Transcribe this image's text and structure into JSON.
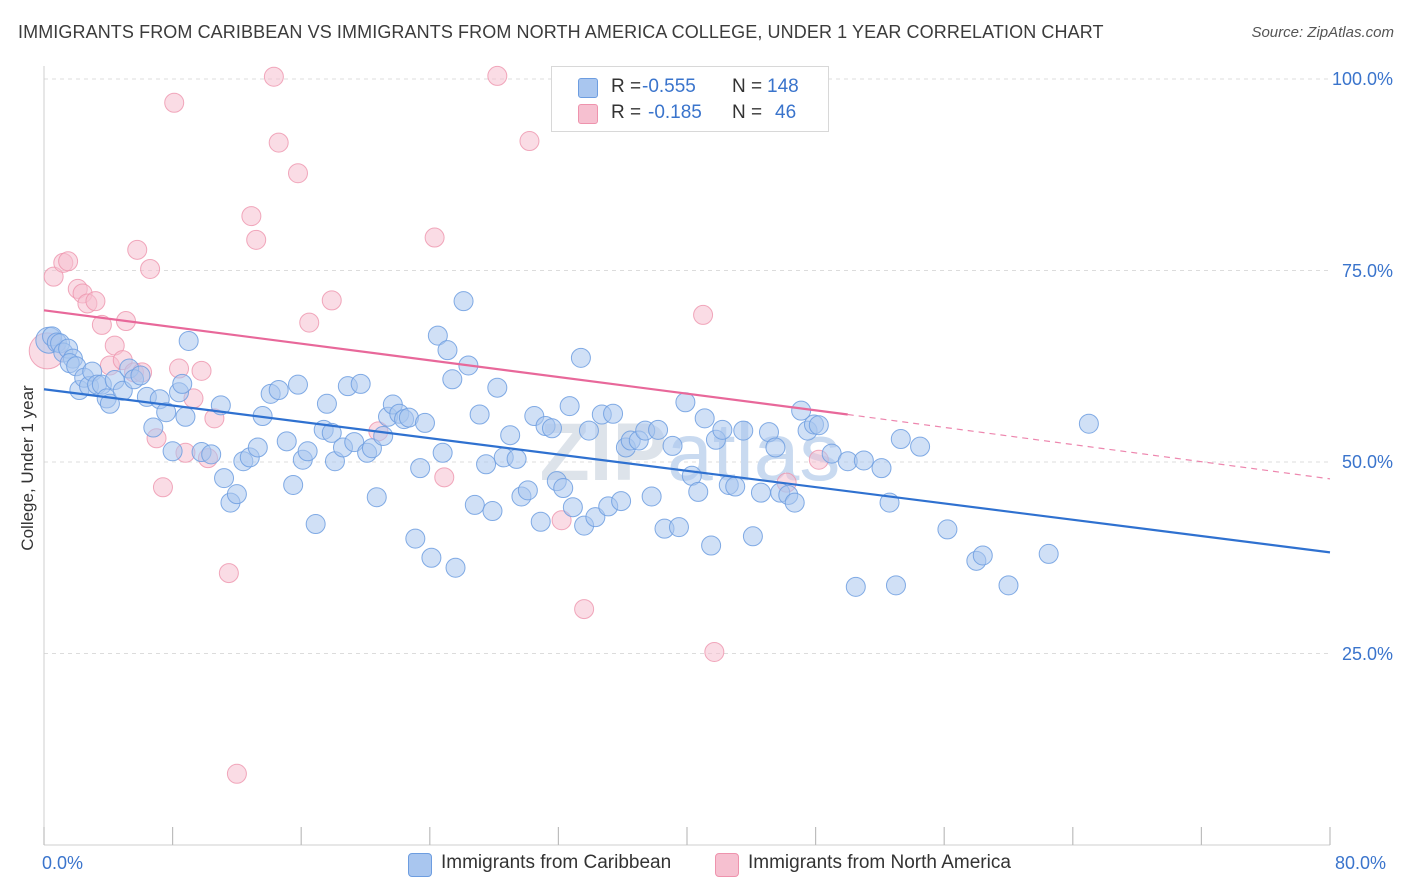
{
  "header": {
    "title": "IMMIGRANTS FROM CARIBBEAN VS IMMIGRANTS FROM NORTH AMERICA COLLEGE, UNDER 1 YEAR CORRELATION CHART",
    "source": "Source: ZipAtlas.com"
  },
  "legend_box": {
    "rows": [
      {
        "r_label": "R =",
        "r_value": "-0.555",
        "n_label": "N =",
        "n_value": "148"
      },
      {
        "r_label": "R =",
        "r_value": "-0.185",
        "n_label": "N =",
        "n_value": "46"
      }
    ]
  },
  "bottom_legend": [
    "Immigrants from Caribbean",
    "Immigrants from North America"
  ],
  "colors": {
    "caribbean_fill": "#a9c6ef",
    "caribbean_stroke": "#6d9de0",
    "caribbean_line": "#2f71d0",
    "northamerica_fill": "#f6c0d0",
    "northamerica_stroke": "#ee93ad",
    "northamerica_line": "#e8689a",
    "axis_label": "#3a74cc",
    "grid": "#dcdcdc"
  },
  "chart_data": {
    "type": "scatter",
    "title": "IMMIGRANTS FROM CARIBBEAN VS IMMIGRANTS FROM NORTH AMERICA COLLEGE, UNDER 1 YEAR CORRELATION CHART",
    "xlabel": "",
    "ylabel": "College, Under 1 year",
    "xlim": [
      0,
      80
    ],
    "ylim": [
      0,
      105
    ],
    "x_tick_labels": [
      "0.0%",
      "80.0%"
    ],
    "y_tick_labels": [
      "25.0%",
      "50.0%",
      "75.0%",
      "100.0%"
    ],
    "y_ticks": [
      25,
      50,
      75,
      100
    ],
    "grid": true,
    "legend_position": "top-center",
    "watermark": "ZIPatlas",
    "series": [
      {
        "name": "Immigrants from Caribbean",
        "r": -0.555,
        "n": 148,
        "trend": {
          "x": [
            0,
            80
          ],
          "y": [
            59.5,
            38.2
          ]
        },
        "points": [
          [
            0.3,
            65.9
          ],
          [
            0.5,
            66.4
          ],
          [
            0.8,
            65.6
          ],
          [
            1.0,
            65.5
          ],
          [
            1.2,
            64.3
          ],
          [
            1.5,
            64.8
          ],
          [
            1.8,
            63.5
          ],
          [
            1.6,
            62.9
          ],
          [
            2.0,
            62.5
          ],
          [
            2.2,
            59.4
          ],
          [
            2.5,
            61.0
          ],
          [
            2.8,
            59.9
          ],
          [
            3.0,
            61.8
          ],
          [
            3.3,
            60.1
          ],
          [
            3.6,
            60.1
          ],
          [
            3.9,
            58.3
          ],
          [
            4.1,
            57.6
          ],
          [
            4.4,
            60.7
          ],
          [
            4.9,
            59.3
          ],
          [
            5.3,
            62.2
          ],
          [
            5.6,
            60.8
          ],
          [
            6.0,
            61.3
          ],
          [
            6.4,
            58.5
          ],
          [
            6.8,
            54.5
          ],
          [
            7.2,
            58.2
          ],
          [
            7.6,
            56.5
          ],
          [
            8.0,
            51.4
          ],
          [
            8.4,
            59.1
          ],
          [
            8.6,
            60.2
          ],
          [
            8.8,
            55.9
          ],
          [
            9.0,
            65.8
          ],
          [
            9.8,
            51.3
          ],
          [
            10.4,
            51.0
          ],
          [
            11.0,
            57.4
          ],
          [
            11.2,
            47.9
          ],
          [
            11.6,
            44.7
          ],
          [
            12.0,
            45.8
          ],
          [
            12.4,
            50.1
          ],
          [
            12.8,
            50.6
          ],
          [
            13.3,
            51.9
          ],
          [
            13.6,
            56.0
          ],
          [
            14.1,
            58.9
          ],
          [
            14.6,
            59.4
          ],
          [
            15.1,
            52.7
          ],
          [
            15.5,
            47.0
          ],
          [
            15.8,
            60.1
          ],
          [
            16.1,
            50.3
          ],
          [
            16.4,
            51.4
          ],
          [
            16.9,
            41.9
          ],
          [
            17.4,
            54.2
          ],
          [
            17.6,
            57.6
          ],
          [
            17.9,
            53.8
          ],
          [
            18.1,
            50.1
          ],
          [
            18.6,
            51.9
          ],
          [
            18.9,
            59.9
          ],
          [
            19.3,
            52.6
          ],
          [
            19.7,
            60.2
          ],
          [
            20.1,
            51.2
          ],
          [
            20.4,
            51.8
          ],
          [
            20.7,
            45.4
          ],
          [
            21.1,
            53.4
          ],
          [
            21.4,
            55.9
          ],
          [
            21.7,
            57.5
          ],
          [
            22.1,
            56.3
          ],
          [
            22.4,
            55.6
          ],
          [
            22.7,
            55.8
          ],
          [
            23.1,
            40.0
          ],
          [
            23.4,
            49.2
          ],
          [
            23.7,
            55.1
          ],
          [
            24.1,
            37.5
          ],
          [
            24.5,
            66.5
          ],
          [
            24.8,
            51.2
          ],
          [
            25.1,
            64.6
          ],
          [
            25.4,
            60.8
          ],
          [
            25.6,
            36.2
          ],
          [
            26.1,
            71.0
          ],
          [
            26.4,
            62.6
          ],
          [
            26.8,
            44.4
          ],
          [
            27.1,
            56.2
          ],
          [
            27.5,
            49.7
          ],
          [
            27.9,
            43.6
          ],
          [
            28.2,
            59.7
          ],
          [
            28.6,
            50.6
          ],
          [
            29.0,
            53.5
          ],
          [
            29.4,
            50.4
          ],
          [
            29.7,
            45.5
          ],
          [
            30.1,
            46.3
          ],
          [
            30.5,
            56.0
          ],
          [
            30.9,
            42.2
          ],
          [
            31.2,
            54.7
          ],
          [
            31.6,
            54.4
          ],
          [
            31.9,
            47.5
          ],
          [
            32.3,
            46.6
          ],
          [
            32.7,
            57.3
          ],
          [
            32.9,
            44.1
          ],
          [
            33.4,
            63.6
          ],
          [
            33.6,
            41.7
          ],
          [
            33.9,
            54.1
          ],
          [
            34.3,
            42.8
          ],
          [
            34.7,
            56.2
          ],
          [
            35.1,
            44.2
          ],
          [
            35.4,
            56.3
          ],
          [
            35.9,
            44.9
          ],
          [
            36.2,
            51.9
          ],
          [
            36.5,
            52.8
          ],
          [
            37.0,
            52.8
          ],
          [
            37.4,
            54.1
          ],
          [
            37.8,
            45.5
          ],
          [
            38.2,
            54.2
          ],
          [
            38.6,
            41.3
          ],
          [
            39.1,
            52.1
          ],
          [
            39.5,
            41.5
          ],
          [
            39.9,
            57.8
          ],
          [
            40.3,
            48.2
          ],
          [
            40.7,
            46.1
          ],
          [
            41.1,
            55.7
          ],
          [
            41.5,
            39.1
          ],
          [
            41.8,
            52.9
          ],
          [
            42.2,
            54.2
          ],
          [
            42.6,
            47.0
          ],
          [
            43.0,
            46.8
          ],
          [
            43.5,
            54.1
          ],
          [
            44.1,
            40.3
          ],
          [
            44.6,
            46.0
          ],
          [
            45.1,
            53.9
          ],
          [
            45.5,
            51.9
          ],
          [
            45.8,
            46.0
          ],
          [
            46.3,
            45.7
          ],
          [
            46.7,
            44.7
          ],
          [
            47.1,
            56.7
          ],
          [
            47.5,
            54.1
          ],
          [
            47.9,
            54.9
          ],
          [
            48.2,
            54.8
          ],
          [
            49.0,
            51.1
          ],
          [
            50.0,
            50.1
          ],
          [
            50.5,
            33.7
          ],
          [
            51.0,
            50.2
          ],
          [
            52.1,
            49.2
          ],
          [
            52.6,
            44.7
          ],
          [
            53.0,
            33.9
          ],
          [
            53.3,
            53.0
          ],
          [
            54.5,
            52.0
          ],
          [
            56.2,
            41.2
          ],
          [
            58.0,
            37.1
          ],
          [
            58.4,
            37.8
          ],
          [
            60.0,
            33.9
          ],
          [
            62.5,
            38.0
          ],
          [
            65.0,
            55.0
          ]
        ]
      },
      {
        "name": "Immigrants from North America",
        "r": -0.185,
        "n": 46,
        "trend": {
          "x": [
            0,
            50
          ],
          "y": [
            69.8,
            56.2
          ],
          "dashed_extension": {
            "x": [
              50,
              80
            ],
            "y": [
              56.2,
              47.8
            ]
          }
        },
        "points": [
          [
            0.2,
            64.5
          ],
          [
            0.6,
            74.2
          ],
          [
            1.2,
            76.0
          ],
          [
            1.5,
            76.2
          ],
          [
            2.1,
            72.6
          ],
          [
            2.4,
            72.0
          ],
          [
            2.7,
            70.7
          ],
          [
            3.2,
            71.0
          ],
          [
            3.6,
            67.9
          ],
          [
            4.1,
            62.6
          ],
          [
            4.4,
            65.2
          ],
          [
            4.9,
            63.3
          ],
          [
            5.1,
            68.4
          ],
          [
            5.6,
            61.7
          ],
          [
            5.8,
            77.7
          ],
          [
            6.1,
            61.7
          ],
          [
            6.6,
            75.2
          ],
          [
            7.0,
            53.1
          ],
          [
            7.4,
            46.7
          ],
          [
            8.1,
            96.9
          ],
          [
            8.4,
            62.2
          ],
          [
            8.8,
            51.2
          ],
          [
            9.3,
            58.3
          ],
          [
            9.8,
            61.9
          ],
          [
            10.2,
            50.5
          ],
          [
            10.6,
            55.7
          ],
          [
            11.5,
            35.5
          ],
          [
            12.0,
            9.3
          ],
          [
            12.9,
            82.1
          ],
          [
            13.2,
            79.0
          ],
          [
            14.3,
            100.3
          ],
          [
            14.6,
            91.7
          ],
          [
            15.8,
            87.7
          ],
          [
            16.5,
            68.2
          ],
          [
            17.9,
            71.1
          ],
          [
            20.8,
            54.0
          ],
          [
            24.3,
            79.3
          ],
          [
            24.9,
            48.0
          ],
          [
            28.2,
            100.4
          ],
          [
            30.2,
            91.9
          ],
          [
            32.2,
            42.4
          ],
          [
            33.6,
            30.8
          ],
          [
            41.0,
            69.2
          ],
          [
            41.7,
            25.2
          ],
          [
            46.2,
            47.3
          ],
          [
            48.2,
            50.3
          ]
        ]
      }
    ]
  }
}
